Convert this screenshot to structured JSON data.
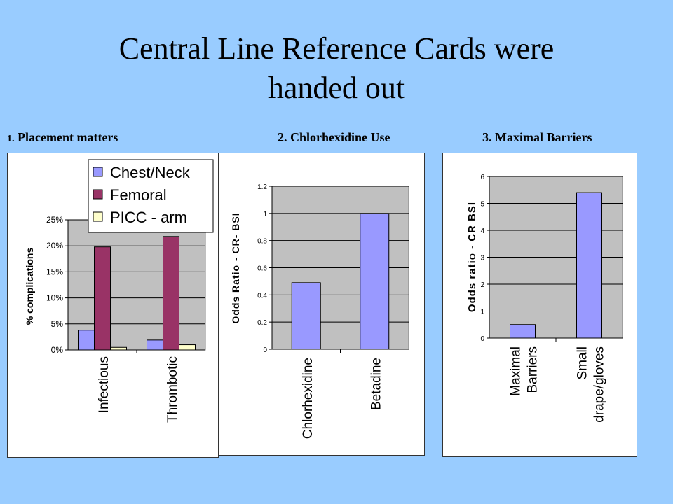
{
  "title_line1": "Central Line Reference Cards were",
  "title_line2": "handed out",
  "captions": {
    "c1_num": "1.",
    "c1_text": "Placement matters",
    "c2": "2. Chlorhexidine Use",
    "c3": "3.  Maximal Barriers"
  },
  "chart_data": [
    {
      "type": "bar",
      "categories": [
        "Infectious",
        "Thrombotic"
      ],
      "series": [
        {
          "name": "Chest/Neck",
          "values": [
            0.038,
            0.019
          ],
          "color": "#9999ff"
        },
        {
          "name": "Femoral",
          "values": [
            0.198,
            0.218
          ],
          "color": "#993366"
        },
        {
          "name": "PICC - arm",
          "values": [
            0.005,
            0.01
          ],
          "color": "#ffffcc"
        }
      ],
      "ylabel": "% complications",
      "ylim": [
        0,
        0.25
      ],
      "yticks": [
        "0%",
        "5%",
        "10%",
        "15%",
        "20%",
        "25%"
      ],
      "legend": "top-right",
      "plot_bg": "#c0c0c0"
    },
    {
      "type": "bar",
      "categories": [
        "Chlorhexidine",
        "Betadine"
      ],
      "values": [
        0.49,
        1.0
      ],
      "color": "#9999ff",
      "ylabel": "Odds Ratio - CR- BSI",
      "ylim": [
        0,
        1.2
      ],
      "yticks": [
        "0",
        "0.2",
        "0.4",
        "0.6",
        "0.8",
        "1",
        "1.2"
      ],
      "plot_bg": "#c0c0c0"
    },
    {
      "type": "bar",
      "categories": [
        [
          "Maximal",
          "Barriers"
        ],
        [
          "Small",
          "drape/gloves"
        ]
      ],
      "values": [
        0.5,
        5.4
      ],
      "color": "#9999ff",
      "ylabel": "Odds ratio - CR BSI",
      "ylim": [
        0,
        6
      ],
      "yticks": [
        "0",
        "1",
        "2",
        "3",
        "4",
        "5",
        "6"
      ],
      "plot_bg": "#c0c0c0"
    }
  ]
}
